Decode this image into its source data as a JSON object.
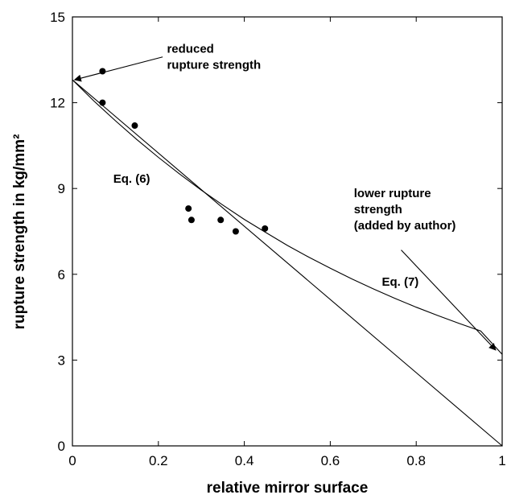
{
  "chart_data": {
    "type": "scatter",
    "title": "",
    "xlabel": "relative mirror surface",
    "ylabel": "rupture strength in kg/mm²",
    "xlim": [
      0,
      1
    ],
    "ylim": [
      0,
      15
    ],
    "x_ticks": [
      0,
      0.2,
      0.4,
      0.6,
      0.8,
      1
    ],
    "x_tick_labels": [
      "0",
      "0.2",
      "0.4",
      "0.6",
      "0.8",
      "1"
    ],
    "y_ticks": [
      0,
      3,
      6,
      9,
      12,
      15
    ],
    "y_tick_labels": [
      "0",
      "3",
      "6",
      "9",
      "12",
      "15"
    ],
    "grid": false,
    "series": [
      {
        "kind": "points",
        "x": [
          0.07,
          0.07,
          0.145,
          0.27,
          0.277,
          0.345,
          0.38,
          0.448
        ],
        "y": [
          13.1,
          12.0,
          11.2,
          8.3,
          7.9,
          7.9,
          7.5,
          7.6
        ]
      },
      {
        "kind": "line",
        "x": [
          0,
          1
        ],
        "y": [
          12.8,
          0
        ]
      },
      {
        "kind": "line",
        "x": [
          0,
          0.05,
          0.1,
          0.15,
          0.2,
          0.25,
          0.3,
          0.35,
          0.4,
          0.45,
          0.5,
          0.55,
          0.6,
          0.65,
          0.7,
          0.75,
          0.8,
          0.85,
          0.9,
          0.95,
          1
        ],
        "y": [
          12.8,
          12.06,
          11.37,
          10.71,
          10.09,
          9.5,
          8.94,
          8.42,
          7.92,
          7.46,
          7.01,
          6.6,
          6.21,
          5.84,
          5.49,
          5.16,
          4.85,
          4.56,
          4.28,
          4.02,
          3.2
        ]
      }
    ],
    "annotations": [
      {
        "id": "reduced",
        "lines": [
          "reduced",
          "rupture strength"
        ],
        "x": 0.22,
        "y": 13.75
      },
      {
        "id": "eq6",
        "lines": [
          "Eq. (6)"
        ],
        "x": 0.095,
        "y": 9.2
      },
      {
        "id": "lower",
        "lines": [
          "lower rupture",
          "strength",
          "(added by author)"
        ],
        "x": 0.655,
        "y": 8.7
      },
      {
        "id": "eq7",
        "lines": [
          "Eq. (7)"
        ],
        "x": 0.72,
        "y": 5.6
      }
    ],
    "arrows": [
      {
        "from": [
          0.21,
          13.6
        ],
        "to": [
          0.005,
          12.8
        ]
      },
      {
        "from": [
          0.765,
          6.85
        ],
        "to": [
          0.985,
          3.35
        ]
      }
    ]
  }
}
